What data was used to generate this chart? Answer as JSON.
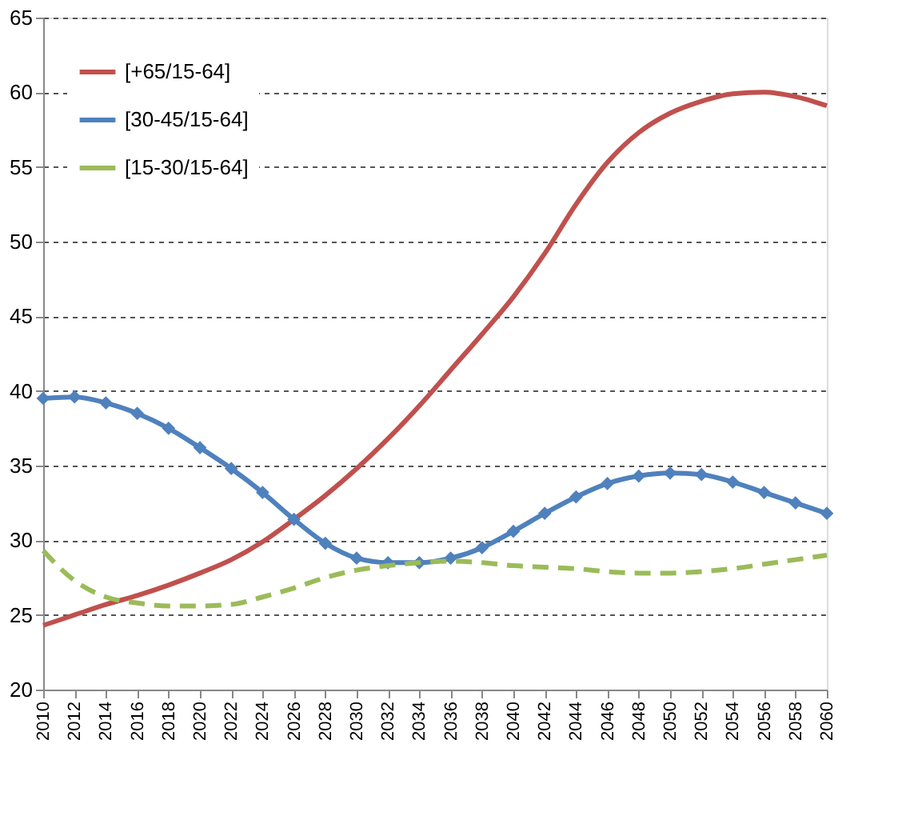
{
  "chart_data": {
    "type": "line",
    "x": [
      2010,
      2012,
      2014,
      2016,
      2018,
      2020,
      2022,
      2024,
      2026,
      2028,
      2030,
      2032,
      2034,
      2036,
      2038,
      2040,
      2042,
      2044,
      2046,
      2048,
      2050,
      2052,
      2054,
      2056,
      2058,
      2060
    ],
    "series": [
      {
        "name": "[+65/15-64]",
        "color": "#c0504d",
        "marker": "none",
        "line_style": "solid",
        "values": [
          24.3,
          25,
          25.7,
          26.3,
          27,
          27.8,
          28.7,
          29.9,
          31.4,
          33,
          34.8,
          36.8,
          39,
          41.4,
          43.8,
          46.3,
          49.2,
          52.5,
          55.3,
          57.3,
          58.6,
          59.4,
          59.9,
          60,
          59.7,
          59.1
        ]
      },
      {
        "name": "[30-45/15-64]",
        "color": "#4f81bd",
        "marker": "diamond",
        "line_style": "solid",
        "values": [
          39.5,
          39.6,
          39.2,
          38.5,
          37.5,
          36.2,
          34.8,
          33.2,
          31.4,
          29.8,
          28.8,
          28.5,
          28.5,
          28.8,
          29.5,
          30.6,
          31.8,
          32.9,
          33.8,
          34.3,
          34.5,
          34.4,
          33.9,
          33.2,
          32.5,
          31.8
        ]
      },
      {
        "name": "[15-30/15-64]",
        "color": "#9bbb59",
        "marker": "none",
        "line_style": "dashed",
        "values": [
          29.3,
          27.3,
          26.2,
          25.8,
          25.6,
          25.6,
          25.7,
          26.2,
          26.8,
          27.5,
          28,
          28.3,
          28.5,
          28.6,
          28.5,
          28.3,
          28.2,
          28.1,
          27.9,
          27.8,
          27.8,
          27.9,
          28.1,
          28.4,
          28.7,
          29
        ]
      }
    ],
    "xlim": [
      2010,
      2060
    ],
    "xticks": [
      2010,
      2012,
      2014,
      2016,
      2018,
      2020,
      2022,
      2024,
      2026,
      2028,
      2030,
      2032,
      2034,
      2036,
      2038,
      2040,
      2042,
      2044,
      2046,
      2048,
      2050,
      2052,
      2054,
      2056,
      2058,
      2060
    ],
    "ylim": [
      20,
      65
    ],
    "yticks": [
      20,
      25,
      30,
      35,
      40,
      45,
      50,
      55,
      60,
      65
    ],
    "grid": "y",
    "legend": "top left"
  }
}
